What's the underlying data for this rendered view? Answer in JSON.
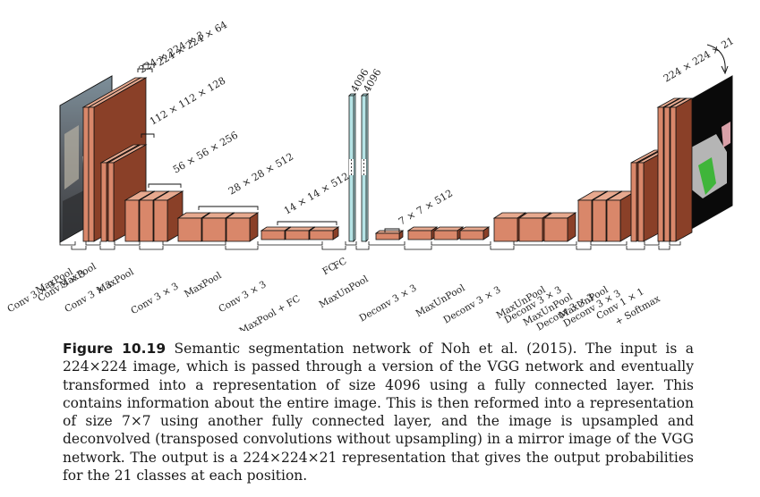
{
  "diagram": {
    "dims": {
      "input": "224 × 224 × 3",
      "conv1": "224 × 224 × 64",
      "conv2": "112 × 112 × 128",
      "conv3": "56 × 56 × 256",
      "conv4": "28 × 28 × 512",
      "conv5": "14 × 14 × 512",
      "fc_a": "4096",
      "fc_b": "4096",
      "unpool0": "7 × 7 × 512",
      "output": "224 × 224 × 21"
    },
    "ops": [
      "Conv 3 × 3",
      "MaxPool",
      "Conv 3 × 3",
      "MaxPool",
      "Conv 3 × 3",
      "MaxPool",
      "Conv 3 × 3",
      "MaxPool",
      "Conv 3 × 3",
      "MaxPool + FC",
      "FC",
      "FC",
      "MaxUnPool",
      "Deconv 3 × 3",
      "MaxUnPool",
      "Deconv 3 × 3",
      "MaxUnPool",
      "Deconv 3 × 3",
      "MaxUnPool",
      "Deconv 3 × 3",
      "MaxUnPool",
      "Deconv 3 × 3",
      "Conv 1 × 1",
      "+ Softmax"
    ],
    "colors": {
      "block_front": "#d9876a",
      "block_top": "#e7a98f",
      "block_side": "#8a4028",
      "fc": "#b6e4e6"
    }
  },
  "caption": {
    "label": "Figure 10.19",
    "text": "Semantic segmentation network of Noh et al. (2015). The input is a 224×224 image, which is passed through a version of the VGG network and eventually transformed into a representation of size 4096 using a fully connected layer. This contains information about the entire image. This is then reformed into a representation of size 7×7 using another fully connected layer, and the image is upsampled and deconvolved (transposed convolutions without upsampling) in a mirror image of the VGG network. The output is a 224×224×21 representation that gives the output probabilities for the 21 classes at each position."
  }
}
